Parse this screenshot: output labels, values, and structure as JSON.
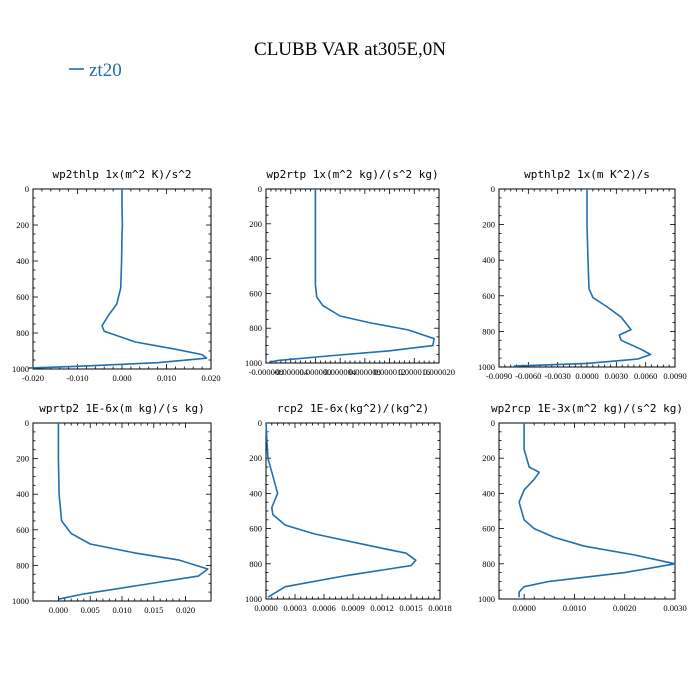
{
  "figure": {
    "title": "CLUBB VAR at305E,0N",
    "legend": [
      {
        "label": "zt20",
        "color": "#1f6fb0"
      }
    ]
  },
  "chart_data": [
    {
      "type": "line",
      "title": "wp2thlp   1x(m^2 K)/s^2",
      "xlim": [
        -0.02,
        0.02
      ],
      "ylim": [
        1000,
        0
      ],
      "xticks": [
        -0.02,
        -0.01,
        0.0,
        0.01,
        0.02
      ],
      "xtick_labels": [
        "-0.020",
        "-0.010",
        "0.000",
        "0.010",
        "0.020"
      ],
      "yticks": [
        0,
        200,
        400,
        600,
        800,
        1000
      ],
      "series": [
        {
          "color": "#1f6fb0",
          "x": [
            0.0,
            0.0,
            0.0001,
            0.0,
            -0.0001,
            -0.0003,
            -0.0012,
            -0.003,
            -0.0045,
            -0.004,
            0.003,
            0.012,
            0.018,
            0.019,
            0.008,
            -0.01,
            -0.021
          ],
          "y": [
            0,
            100,
            200,
            250,
            400,
            550,
            640,
            700,
            760,
            790,
            850,
            890,
            920,
            940,
            965,
            985,
            995
          ]
        }
      ]
    },
    {
      "type": "line",
      "title": "wp2rtp   1x(m^2 kg)/(s^2 kg)",
      "xlim": [
        -8e-06,
        2e-05
      ],
      "ylim": [
        1000,
        0
      ],
      "xticks": [
        -8e-06,
        -4e-06,
        0.0,
        4e-06,
        8e-06,
        1.2e-05,
        1.6e-05,
        2e-05
      ],
      "xtick_labels": [
        "-0.000008",
        "-0.000004",
        "0.000000",
        "0.000004",
        "0.000008",
        "0.000012",
        "0.000016",
        "0.000020"
      ],
      "yticks": [
        0,
        200,
        400,
        600,
        800,
        1000
      ],
      "series": [
        {
          "color": "#1f6fb0",
          "x": [
            0.0,
            0.0,
            0.0,
            0.0,
            2e-07,
            1.2e-06,
            4e-06,
            9e-06,
            1.5e-05,
            1.92e-05,
            1.9e-05,
            1.2e-05,
            2e-06,
            -6e-06,
            -7.5e-06
          ],
          "y": [
            0,
            200,
            400,
            550,
            620,
            670,
            730,
            770,
            810,
            860,
            900,
            930,
            960,
            985,
            995
          ]
        }
      ]
    },
    {
      "type": "line",
      "title": "wpthlp2  1x(m K^2)/s",
      "xlim": [
        -0.009,
        0.009
      ],
      "ylim": [
        1000,
        0
      ],
      "xticks": [
        -0.009,
        -0.006,
        -0.003,
        0.0,
        0.003,
        0.006,
        0.009
      ],
      "xtick_labels": [
        "-0.0090",
        "-0.0060",
        "-0.0030",
        "0.0000",
        "0.0030",
        "0.0060",
        "0.0090"
      ],
      "yticks": [
        0,
        200,
        400,
        600,
        800,
        1000
      ],
      "series": [
        {
          "color": "#1f6fb0",
          "x": [
            0.0,
            0.0,
            0.0001,
            0.0002,
            0.0006,
            0.002,
            0.0035,
            0.0045,
            0.0033,
            0.0035,
            0.0055,
            0.0065,
            0.0052,
            0.0,
            -0.0075
          ],
          "y": [
            0,
            200,
            400,
            560,
            610,
            660,
            720,
            790,
            820,
            850,
            900,
            930,
            955,
            980,
            995
          ]
        }
      ]
    },
    {
      "type": "line",
      "title": "wprtp2   1E-6x(m kg)/(s kg)",
      "xlim": [
        -0.004,
        0.024
      ],
      "ylim": [
        1000,
        0
      ],
      "xticks": [
        0.0,
        0.005,
        0.01,
        0.015,
        0.02
      ],
      "xtick_labels": [
        "0.000",
        "0.005",
        "0.010",
        "0.015",
        "0.020"
      ],
      "yticks": [
        0,
        200,
        400,
        600,
        800,
        1000
      ],
      "series": [
        {
          "color": "#1f6fb0",
          "x": [
            0.0,
            0.0,
            0.0001,
            0.0005,
            0.002,
            0.005,
            0.012,
            0.019,
            0.0235,
            0.022,
            0.013,
            0.004,
            0.0
          ],
          "y": [
            0,
            200,
            400,
            550,
            620,
            680,
            730,
            770,
            820,
            860,
            910,
            960,
            990
          ]
        }
      ]
    },
    {
      "type": "line",
      "title": "rcp2   1E-6x(kg^2)/(kg^2)",
      "xlim": [
        0,
        0.0018
      ],
      "ylim": [
        1000,
        0
      ],
      "xticks": [
        0.0,
        0.0003,
        0.0006,
        0.0009,
        0.0012,
        0.0015,
        0.0018
      ],
      "xtick_labels": [
        "0.0000",
        "0.0003",
        "0.0006",
        "0.0009",
        "0.0012",
        "0.0015",
        "0.0018"
      ],
      "yticks": [
        0,
        200,
        400,
        600,
        800,
        1000
      ],
      "series": [
        {
          "color": "#1f6fb0",
          "x": [
            0.0,
            2e-05,
            7e-05,
            0.00012,
            6e-05,
            7e-05,
            0.0002,
            0.0005,
            0.0011,
            0.00145,
            0.00155,
            0.0015,
            0.0008,
            0.0002,
            2e-05
          ],
          "y": [
            0,
            200,
            300,
            400,
            480,
            520,
            580,
            630,
            700,
            740,
            780,
            810,
            870,
            930,
            990
          ]
        }
      ]
    },
    {
      "type": "line",
      "title": "wp2rcp  1E-3x(m^2 kg)/(s^2 kg)",
      "xlim": [
        -0.0005,
        0.003
      ],
      "ylim": [
        1000,
        0
      ],
      "xticks": [
        0.0,
        0.001,
        0.002,
        0.003
      ],
      "xtick_labels": [
        "0.0000",
        "0.0010",
        "0.0020",
        "0.0030"
      ],
      "yticks": [
        0,
        200,
        400,
        600,
        800,
        1000
      ],
      "series": [
        {
          "color": "#1f6fb0",
          "x": [
            0.0,
            0.0,
            0.0001,
            0.0003,
            0.0002,
            0.0,
            -0.0001,
            0.0,
            0.0002,
            0.0006,
            0.0012,
            0.0022,
            0.003,
            0.002,
            0.0005,
            0.0,
            -0.0001,
            -0.0001
          ],
          "y": [
            0,
            150,
            250,
            280,
            320,
            380,
            450,
            550,
            600,
            650,
            700,
            750,
            800,
            850,
            900,
            930,
            960,
            990
          ]
        }
      ]
    }
  ]
}
